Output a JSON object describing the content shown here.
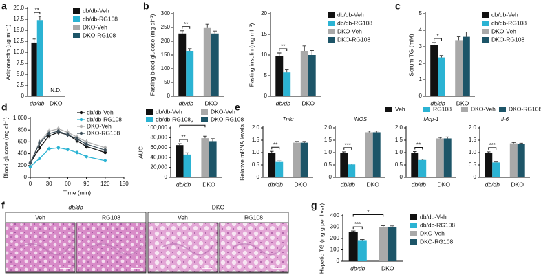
{
  "chart_data": [
    {
      "panel": "a",
      "type": "bar",
      "ylabel": "Adiponectin (μg ml⁻¹)",
      "categories": [
        "db/db",
        "DKO"
      ],
      "ylim": [
        0,
        20
      ],
      "yticks": [
        0,
        2.5,
        {
          "value": 5,
          "label": "5.0"
        },
        7.5,
        {
          "value": 10,
          "label": "10.0"
        },
        12.5,
        {
          "value": 15,
          "label": "15.0"
        },
        17.5,
        {
          "value": 20,
          "label": "20.0"
        }
      ],
      "series": [
        {
          "name": "db/db-Veh",
          "color": "#111111",
          "values": [
            12.2,
            null
          ],
          "errors": [
            0.8,
            null
          ]
        },
        {
          "name": "db/db-RG108",
          "color": "#2bb3d3",
          "values": [
            17.3,
            null
          ],
          "errors": [
            0.8,
            null
          ]
        },
        {
          "name": "DKO-Veh",
          "color": "#a9a9a9",
          "values": [
            null,
            null
          ]
        },
        {
          "name": "DKO-RG108",
          "color": "#1d5568",
          "values": [
            null,
            null
          ]
        }
      ],
      "significance": [
        "**"
      ],
      "annotation": "N.D."
    },
    {
      "panel": "b",
      "type": "bar",
      "ylabel": "Fasting blood glucose (mg dl⁻¹)",
      "categories": [
        "db/db",
        "DKO"
      ],
      "ylim": [
        0,
        300
      ],
      "yticks": [
        0,
        50,
        100,
        150,
        200,
        250,
        300
      ],
      "series": [
        {
          "color": "#111111",
          "values": [
            228,
            null
          ],
          "errors": [
            10,
            null
          ]
        },
        {
          "color": "#2bb3d3",
          "values": [
            165,
            null
          ],
          "errors": [
            8,
            null
          ]
        },
        {
          "color": "#a9a9a9",
          "values": [
            null,
            248
          ],
          "errors": [
            null,
            14
          ]
        },
        {
          "color": "#1d5568",
          "values": [
            null,
            228
          ],
          "errors": [
            null,
            9
          ]
        }
      ],
      "significance": [
        "**"
      ]
    },
    {
      "type": "bar",
      "ylabel": "Fasting insulin (mg ml⁻¹)",
      "categories": [
        "db/db",
        "DKO"
      ],
      "ylim": [
        0,
        20
      ],
      "yticks": [
        0,
        5,
        10,
        15,
        20
      ],
      "series": [
        {
          "name": "db/db-Veh",
          "color": "#111111",
          "values": [
            9.8,
            null
          ],
          "errors": [
            0.7,
            null
          ]
        },
        {
          "name": "db/db-RG108",
          "color": "#2bb3d3",
          "values": [
            5.8,
            null
          ],
          "errors": [
            0.6,
            null
          ]
        },
        {
          "name": "DKO-Veh",
          "color": "#a9a9a9",
          "values": [
            null,
            11
          ],
          "errors": [
            null,
            1.2
          ]
        },
        {
          "name": "DKO-RG108",
          "color": "#1d5568",
          "values": [
            null,
            10
          ],
          "errors": [
            null,
            1.1
          ]
        }
      ],
      "significance": [
        "**"
      ]
    },
    {
      "panel": "c",
      "type": "bar",
      "ylabel": "Serum TG (mM)",
      "categories": [
        "db/db",
        "DKO"
      ],
      "ylim": [
        0,
        5
      ],
      "yticks": [
        0,
        1,
        2,
        3,
        4,
        5
      ],
      "series": [
        {
          "name": "db/db-Veh",
          "color": "#111111",
          "values": [
            3.1,
            null
          ],
          "errors": [
            0.15,
            null
          ]
        },
        {
          "name": "db/db-RG108",
          "color": "#2bb3d3",
          "values": [
            2.35,
            null
          ],
          "errors": [
            0.12,
            null
          ]
        },
        {
          "name": "DKO-Veh",
          "color": "#a9a9a9",
          "values": [
            null,
            3.4
          ],
          "errors": [
            null,
            0.2
          ]
        },
        {
          "name": "DKO-RG108",
          "color": "#1d5568",
          "values": [
            null,
            3.6
          ],
          "errors": [
            null,
            0.3
          ]
        }
      ],
      "significance": [
        "*"
      ]
    },
    {
      "panel": "d",
      "type": "line",
      "ylabel": "Blood glucose (mg dl⁻¹)",
      "xlabel": "Time (min)",
      "x": [
        0,
        15,
        30,
        45,
        60,
        75,
        90,
        120
      ],
      "xlim": [
        0,
        150
      ],
      "xticks": [
        0,
        30,
        60,
        90,
        120,
        150
      ],
      "ylim": [
        0,
        1000
      ],
      "yticks": [
        0,
        200,
        400,
        600,
        800,
        {
          "value": 1000,
          "label": "1,000"
        }
      ],
      "series": [
        {
          "name": "db/db-Veh",
          "color": "#111111",
          "values": [
            240,
            500,
            700,
            760,
            720,
            620,
            520,
            420
          ],
          "errors": [
            30,
            40,
            40,
            40,
            40,
            40,
            35,
            30
          ]
        },
        {
          "name": "db/db-RG108",
          "color": "#2bb3d3",
          "values": [
            180,
            320,
            480,
            500,
            470,
            420,
            350,
            280
          ],
          "errors": [
            25,
            30,
            35,
            35,
            30,
            30,
            30,
            25
          ]
        },
        {
          "name": "DKO-Veh",
          "color": "#b0b0b0",
          "values": [
            250,
            600,
            780,
            820,
            760,
            680,
            600,
            500
          ],
          "errors": [
            30,
            50,
            50,
            50,
            50,
            45,
            40,
            40
          ]
        },
        {
          "name": "DKO-RG108",
          "color": "#3d4f5a",
          "values": [
            240,
            580,
            740,
            780,
            720,
            650,
            560,
            460
          ],
          "errors": [
            30,
            45,
            45,
            45,
            45,
            40,
            40,
            35
          ]
        }
      ]
    },
    {
      "type": "bar",
      "ylabel": "AUC",
      "categories": [
        "db/db",
        "DKO"
      ],
      "ylim": [
        0,
        100000
      ],
      "yticks": [
        0,
        {
          "value": 20000,
          "label": "20,000"
        },
        {
          "value": 40000,
          "label": "40,000"
        },
        {
          "value": 60000,
          "label": "60,000"
        },
        {
          "value": 80000,
          "label": "80,000"
        },
        {
          "value": 100000,
          "label": "100,000"
        }
      ],
      "series": [
        {
          "name": "db/db-Veh",
          "color": "#111111",
          "values": [
            65000,
            null
          ],
          "errors": [
            3000,
            null
          ]
        },
        {
          "name": "db/db-RG108",
          "color": "#2bb3d3",
          "values": [
            46000,
            null
          ],
          "errors": [
            3500,
            null
          ]
        },
        {
          "name": "DKO-Veh",
          "color": "#a9a9a9",
          "values": [
            null,
            79000
          ],
          "errors": [
            null,
            4000
          ]
        },
        {
          "name": "DKO-RG108",
          "color": "#1d5568",
          "values": [
            null,
            73000
          ],
          "errors": [
            null,
            5000
          ]
        }
      ],
      "significance": [
        "**",
        "*"
      ]
    },
    {
      "panel": "e",
      "type": "bar",
      "title": "Tnfα",
      "ylabel": "Relative mRNA levels",
      "categories": [
        "db/db",
        "DKO"
      ],
      "ylim": [
        0,
        2
      ],
      "yticks": [
        0,
        0.5,
        {
          "value": 1,
          "label": "1.0"
        },
        1.5,
        {
          "value": 2,
          "label": "2.0"
        }
      ],
      "series": [
        {
          "name": "Veh",
          "color": "#111111",
          "values": [
            1.0,
            null
          ],
          "errors": [
            0.05,
            null
          ]
        },
        {
          "name": "RG108",
          "color": "#2bb3d3",
          "values": [
            0.62,
            null
          ],
          "errors": [
            0.04,
            null
          ]
        },
        {
          "name": "DKO-Veh",
          "color": "#a9a9a9",
          "values": [
            null,
            1.4
          ],
          "errors": [
            null,
            0.05
          ]
        },
        {
          "name": "DKO-RG108",
          "color": "#1d5568",
          "values": [
            null,
            1.4
          ],
          "errors": [
            null,
            0.05
          ]
        }
      ],
      "significance": [
        "**"
      ]
    },
    {
      "type": "bar",
      "title": "iNOS",
      "categories": [
        "db/db",
        "DKO"
      ],
      "ylim": [
        0,
        2
      ],
      "yticks": [
        0,
        0.5,
        {
          "value": 1,
          "label": "1.0"
        },
        1.5,
        {
          "value": 2,
          "label": "2.0"
        }
      ],
      "series": [
        {
          "color": "#111111",
          "values": [
            1.0,
            null
          ],
          "errors": [
            0.03,
            null
          ]
        },
        {
          "color": "#2bb3d3",
          "values": [
            0.52,
            null
          ],
          "errors": [
            0.02,
            null
          ]
        },
        {
          "color": "#a9a9a9",
          "values": [
            null,
            1.82
          ],
          "errors": [
            null,
            0.05
          ]
        },
        {
          "color": "#1d5568",
          "values": [
            null,
            1.82
          ],
          "errors": [
            null,
            0.05
          ]
        }
      ],
      "significance": [
        "***"
      ]
    },
    {
      "type": "bar",
      "title": "Mcp-1",
      "categories": [
        "db/db",
        "DKO"
      ],
      "ylim": [
        0,
        2
      ],
      "yticks": [
        0,
        0.5,
        {
          "value": 1,
          "label": "1.0"
        },
        1.5,
        {
          "value": 2,
          "label": "2.0"
        }
      ],
      "series": [
        {
          "color": "#111111",
          "values": [
            1.0,
            null
          ],
          "errors": [
            0.04,
            null
          ]
        },
        {
          "color": "#2bb3d3",
          "values": [
            0.7,
            null
          ],
          "errors": [
            0.03,
            null
          ]
        },
        {
          "color": "#a9a9a9",
          "values": [
            null,
            1.57
          ],
          "errors": [
            null,
            0.04
          ]
        },
        {
          "color": "#1d5568",
          "values": [
            null,
            1.57
          ],
          "errors": [
            null,
            0.06
          ]
        }
      ],
      "significance": [
        "**"
      ]
    },
    {
      "type": "bar",
      "title": "Il-6",
      "categories": [
        "db/db",
        "DKO"
      ],
      "ylim": [
        0,
        2
      ],
      "yticks": [
        0,
        0.5,
        {
          "value": 1,
          "label": "1.0"
        },
        1.5,
        {
          "value": 2,
          "label": "2.0"
        }
      ],
      "series": [
        {
          "color": "#111111",
          "values": [
            1.0,
            null
          ],
          "errors": [
            0.03,
            null
          ]
        },
        {
          "color": "#2bb3d3",
          "values": [
            0.6,
            null
          ],
          "errors": [
            0.02,
            null
          ]
        },
        {
          "color": "#a9a9a9",
          "values": [
            null,
            1.37
          ],
          "errors": [
            null,
            0.04
          ]
        },
        {
          "color": "#1d5568",
          "values": [
            null,
            1.35
          ],
          "errors": [
            null,
            0.03
          ]
        }
      ],
      "significance": [
        "***"
      ]
    },
    {
      "panel": "g",
      "type": "bar",
      "ylabel": "Hepatic TG (mg g per liver)",
      "categories": [
        "db/db",
        "DKO"
      ],
      "ylim": [
        0,
        400
      ],
      "yticks": [
        0,
        100,
        200,
        300,
        400
      ],
      "series": [
        {
          "name": "db/db-Veh",
          "color": "#111111",
          "values": [
            258,
            null
          ],
          "errors": [
            8,
            null
          ]
        },
        {
          "name": "db/db-RG108",
          "color": "#2bb3d3",
          "values": [
            185,
            null
          ],
          "errors": [
            6,
            null
          ]
        },
        {
          "name": "DKO-Veh",
          "color": "#a9a9a9",
          "values": [
            null,
            300
          ],
          "errors": [
            null,
            12
          ]
        },
        {
          "name": "DKO-RG108",
          "color": "#1d5568",
          "values": [
            null,
            300
          ],
          "errors": [
            null,
            10
          ]
        }
      ],
      "significance": [
        "***",
        "*"
      ]
    }
  ],
  "histology": {
    "panel": "f",
    "groups": [
      {
        "label": "db/db",
        "images": [
          "Veh",
          "RG108"
        ]
      },
      {
        "label": "DKO",
        "images": [
          "Veh",
          "RG108"
        ]
      }
    ]
  }
}
